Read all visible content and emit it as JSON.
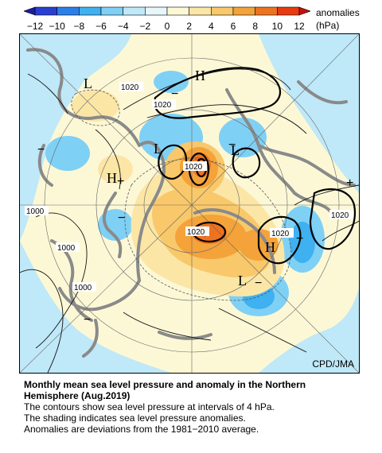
{
  "colorbar": {
    "ticks": [
      "−12",
      "−10",
      "−8",
      "−6",
      "−4",
      "−2",
      "0",
      "2",
      "4",
      "6",
      "8",
      "10",
      "12"
    ],
    "unit_line1": "anomalies",
    "unit_line2": "(hPa)",
    "colors": [
      "#2a3fd0",
      "#2b7fe8",
      "#3fb0f0",
      "#7fd0f5",
      "#bfe8f8",
      "#e8f6fb",
      "#fcf8d6",
      "#fbe6a6",
      "#f8c86a",
      "#f4a23a",
      "#ee7320",
      "#e83a10"
    ]
  },
  "map": {
    "contour_labels": [
      "1020",
      "1020",
      "1020",
      "1020",
      "1020",
      "1020",
      "1000",
      "1000",
      "1000"
    ],
    "high_marker": "H",
    "low_marker": "L",
    "credit": "CPD/JMA",
    "land_color": "#8a8a8a"
  },
  "caption": {
    "title_line1": "Monthly mean sea level pressure and anomaly in the Northern",
    "title_line2": "Hemisphere (Aug.2019)",
    "line1": "The contours show sea level pressure at intervals of 4 hPa.",
    "line2": "The shading indicates sea level pressure anomalies.",
    "line3": "Anomalies are deviations from the 1981−2010 average."
  }
}
